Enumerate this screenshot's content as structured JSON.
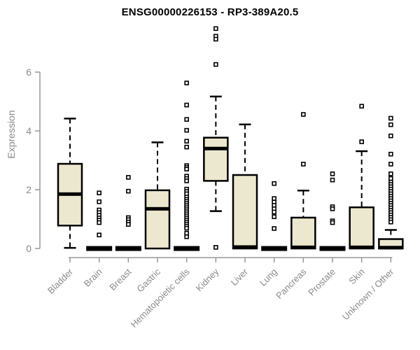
{
  "colors": {
    "background": "#FFFFFF",
    "box_fill": "#ECE8D0",
    "box_border": "#000000",
    "median": "#000000",
    "axis_line": "#999999",
    "axis_text": "#8A8A8A",
    "title_text": "#000000"
  },
  "chart_data": {
    "type": "boxplot",
    "title": "ENSG00000226153 - RP3-389A20.5",
    "ylabel": "Expression",
    "xlabel": "",
    "ylim": [
      0,
      6
    ],
    "yticks": [
      0,
      2,
      4,
      6
    ],
    "grid": false,
    "legend": "none",
    "categories": [
      "Bladder",
      "Brain",
      "Breast",
      "Gastric",
      "Hematopoietic cells",
      "Kidney",
      "Liver",
      "Lung",
      "Pancreas",
      "Prostate",
      "Skin",
      "Unknown / Other"
    ],
    "boxes": [
      {
        "category": "Bladder",
        "low": 0.02,
        "q1": 0.78,
        "median": 1.85,
        "q3": 2.88,
        "high": 4.42,
        "outliers": []
      },
      {
        "category": "Brain",
        "low": 0,
        "q1": 0,
        "median": 0,
        "q3": 0,
        "high": 0,
        "outliers": [
          1.89,
          1.59,
          1.31,
          1.22,
          1.13,
          1.04,
          0.96,
          0.88,
          0.46
        ]
      },
      {
        "category": "Breast",
        "low": 0,
        "q1": 0,
        "median": 0,
        "q3": 0,
        "high": 0,
        "outliers": [
          2.42,
          1.95,
          1.05,
          0.98,
          0.9,
          0.82
        ]
      },
      {
        "category": "Gastric",
        "low": 0,
        "q1": 0,
        "median": 1.35,
        "q3": 1.98,
        "high": 3.61,
        "outliers": []
      },
      {
        "category": "Hematopoietic cells",
        "low": 0,
        "q1": 0,
        "median": 0,
        "q3": 0,
        "high": 0,
        "outliers": [
          5.63,
          4.88,
          4.39,
          4.02,
          3.65,
          3.45,
          2.82,
          2.76,
          2.7,
          2.46,
          2.38,
          2.3,
          2.02,
          1.94,
          1.86,
          1.75,
          1.67,
          1.6,
          1.53,
          1.46,
          1.39,
          1.32,
          1.25,
          1.18,
          1.11,
          1.04,
          0.97,
          0.9,
          0.83,
          0.76,
          0.69,
          0.52,
          0.4
        ]
      },
      {
        "category": "Kidney",
        "low": 1.27,
        "q1": 2.3,
        "median": 3.4,
        "q3": 3.77,
        "high": 5.17,
        "outliers": [
          7.48,
          7.22,
          7.12,
          6.26,
          0.04
        ]
      },
      {
        "category": "Liver",
        "low": 0,
        "q1": 0,
        "median": 0.05,
        "q3": 2.5,
        "high": 4.22,
        "outliers": []
      },
      {
        "category": "Lung",
        "low": 0,
        "q1": 0,
        "median": 0,
        "q3": 0,
        "high": 0,
        "outliers": [
          2.21,
          1.7,
          1.58,
          1.47,
          1.35,
          1.24,
          1.08,
          0.68
        ]
      },
      {
        "category": "Pancreas",
        "low": 0,
        "q1": 0,
        "median": 0.04,
        "q3": 1.05,
        "high": 1.97,
        "outliers": [
          4.56,
          2.87
        ]
      },
      {
        "category": "Prostate",
        "low": 0,
        "q1": 0,
        "median": 0,
        "q3": 0,
        "high": 0,
        "outliers": [
          2.54,
          2.33,
          1.42,
          1.35,
          0.94,
          0.88
        ]
      },
      {
        "category": "Skin",
        "low": 0,
        "q1": 0,
        "median": 0.04,
        "q3": 1.4,
        "high": 3.31,
        "outliers": [
          4.84,
          3.63
        ]
      },
      {
        "category": "Unknown / Other",
        "low": 0,
        "q1": 0,
        "median": 0.03,
        "q3": 0.32,
        "high": 0.63,
        "outliers": [
          4.43,
          4.21,
          3.83,
          3.21,
          2.87,
          2.54,
          2.38,
          2.26,
          2.18,
          2.1,
          2.02,
          1.94,
          1.86,
          1.78,
          1.7,
          1.62,
          1.54,
          1.46,
          1.38,
          1.3,
          1.22,
          1.14,
          1.06,
          0.98,
          0.9
        ]
      }
    ]
  }
}
